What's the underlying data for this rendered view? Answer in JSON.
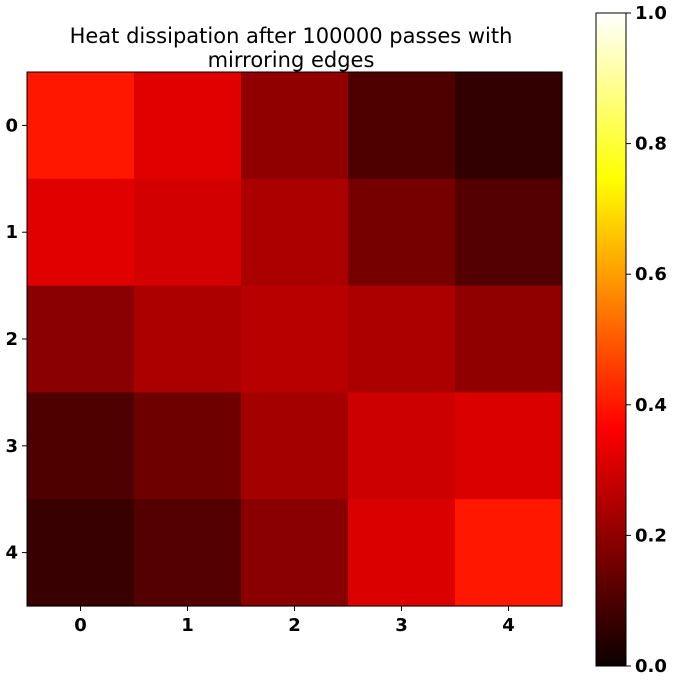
{
  "chart_data": {
    "type": "heatmap",
    "title_lines": [
      "Heat dissipation after 100000 passes with",
      "mirroring edges"
    ],
    "x_categories": [
      "0",
      "1",
      "2",
      "3",
      "4"
    ],
    "y_categories": [
      "0",
      "1",
      "2",
      "3",
      "4"
    ],
    "values": [
      [
        0.4,
        0.32,
        0.2,
        0.1,
        0.06
      ],
      [
        0.32,
        0.3,
        0.24,
        0.16,
        0.11
      ],
      [
        0.19,
        0.24,
        0.26,
        0.24,
        0.2
      ],
      [
        0.1,
        0.15,
        0.23,
        0.29,
        0.31
      ],
      [
        0.07,
        0.11,
        0.19,
        0.31,
        0.4
      ]
    ],
    "colormap": "hot",
    "vmin": 0.0,
    "vmax": 1.0,
    "colorbar": {
      "ticks": [
        0.0,
        0.2,
        0.4,
        0.6,
        0.8,
        1.0
      ],
      "tick_labels": [
        "0.0",
        "0.2",
        "0.4",
        "0.6",
        "0.8",
        "1.0"
      ]
    },
    "xlabel": "",
    "ylabel": ""
  }
}
